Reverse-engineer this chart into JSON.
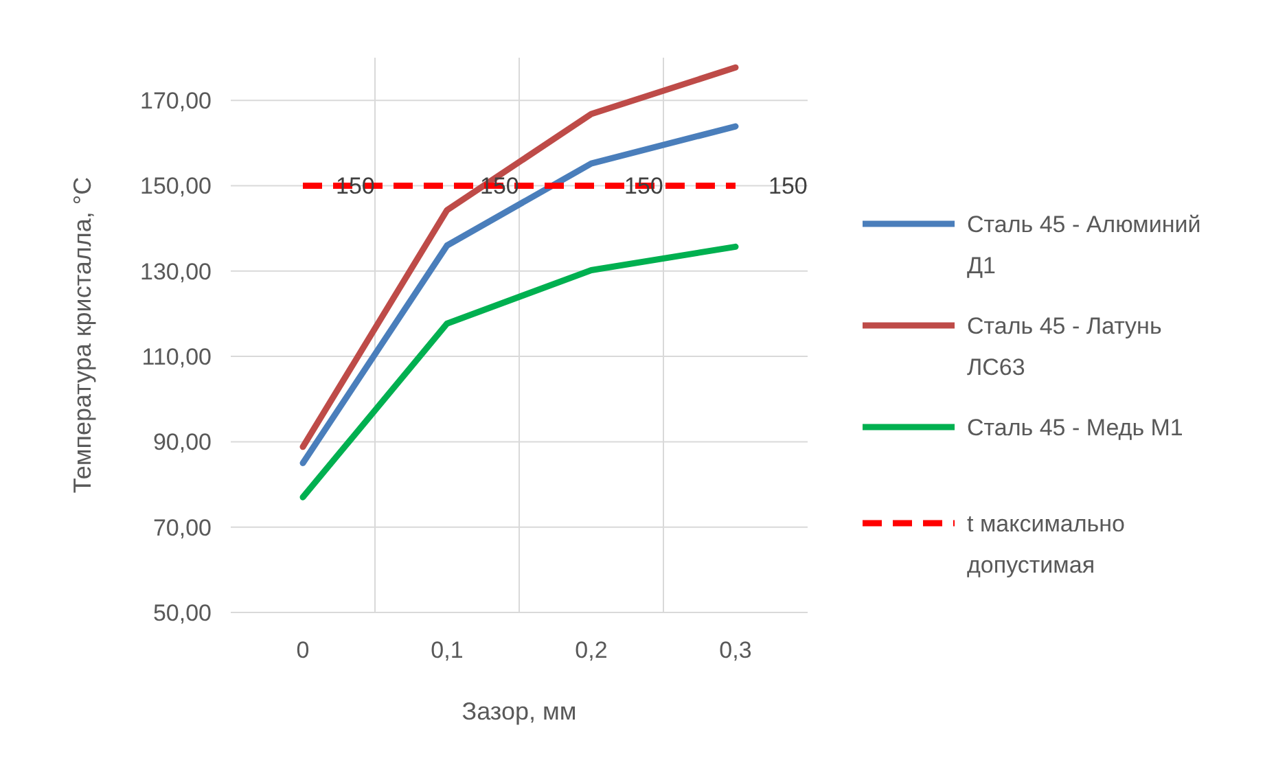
{
  "chart_data": {
    "type": "line",
    "xlabel": "Зазор, мм",
    "ylabel": "Температура кристалла, °C",
    "categories": [
      "0",
      "0,1",
      "0,2",
      "0,3"
    ],
    "ylim": [
      50,
      180
    ],
    "yticks": [
      {
        "value": 50,
        "label": "50,00"
      },
      {
        "value": 70,
        "label": "70,00"
      },
      {
        "value": 90,
        "label": "90,00"
      },
      {
        "value": 110,
        "label": "110,00"
      },
      {
        "value": 130,
        "label": "130,00"
      },
      {
        "value": 150,
        "label": "150,00"
      },
      {
        "value": 170,
        "label": "170,00"
      }
    ],
    "grid": true,
    "legend": "right",
    "marker": "none",
    "series": [
      {
        "name": "Сталь 45 - Алюминий Д1",
        "color": "#4a7ebb",
        "values": [
          85,
          136,
          155.2,
          163.9
        ]
      },
      {
        "name": "Сталь 45 - Латунь ЛС63",
        "color": "#be4b48",
        "values": [
          88.8,
          144.3,
          166.8,
          177.7
        ]
      },
      {
        "name": "Сталь 45 - Медь М1",
        "color": "#00b050",
        "values": [
          77,
          117.7,
          130.2,
          135.7
        ]
      },
      {
        "name": "t максимально допустимая",
        "color": "#ff0000",
        "line_style": "dashed",
        "values": [
          150,
          150,
          150,
          150
        ],
        "value_labels": [
          "150",
          "150",
          "150",
          "150"
        ]
      }
    ]
  }
}
